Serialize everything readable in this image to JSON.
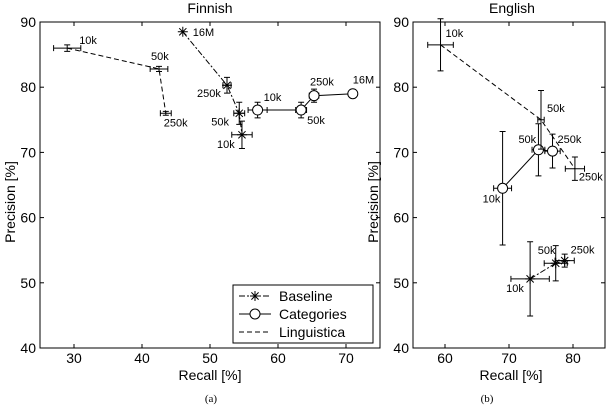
{
  "chart_data": [
    {
      "type": "scatter",
      "title": "Finnish",
      "xlabel": "Recall [%]",
      "ylabel": "Precision [%]",
      "caption": "(a)",
      "xlim": [
        25,
        75
      ],
      "ylim": [
        40,
        90
      ],
      "xticks": [
        30,
        40,
        50,
        60,
        70
      ],
      "yticks": [
        40,
        50,
        60,
        70,
        80,
        90
      ],
      "grid": false,
      "legend": {
        "placement": "bottom-right",
        "entries": [
          {
            "name": "Baseline",
            "marker": "star",
            "dash": "6,2,2,2"
          },
          {
            "name": "Categories",
            "marker": "circle",
            "dash": ""
          },
          {
            "name": "Linguistica",
            "marker": "none",
            "dash": "5,3"
          }
        ]
      },
      "series": [
        {
          "name": "Baseline",
          "marker": "star",
          "dash": "6,2,2,2",
          "points": [
            {
              "label": "16M",
              "x": 46,
              "y": 88.5,
              "xerr": 0,
              "yerr": 0,
              "label_dx": 10,
              "label_dy": 4
            },
            {
              "label": "250k",
              "x": 52.5,
              "y": 80.3,
              "xerr": 0.6,
              "yerr": 1.2,
              "label_dx": -30,
              "label_dy": 12
            },
            {
              "label": "50k",
              "x": 54.3,
              "y": 76.0,
              "xerr": 0.8,
              "yerr": 1.7,
              "label_dx": -28,
              "label_dy": 12
            },
            {
              "label": "10k",
              "x": 54.7,
              "y": 72.7,
              "xerr": 1.5,
              "yerr": 2.1,
              "label_dx": -25,
              "label_dy": 13
            }
          ]
        },
        {
          "name": "Categories",
          "marker": "circle",
          "dash": "",
          "points": [
            {
              "label": "10k",
              "x": 57.0,
              "y": 76.5,
              "xerr": 1.4,
              "yerr": 1.2,
              "label_dx": 6,
              "label_dy": -9
            },
            {
              "label": "50k",
              "x": 63.4,
              "y": 76.5,
              "xerr": 0.8,
              "yerr": 1.2,
              "label_dx": 6,
              "label_dy": 14
            },
            {
              "label": "250k",
              "x": 65.3,
              "y": 78.7,
              "xerr": 0.7,
              "yerr": 1.0,
              "label_dx": -4,
              "label_dy": -10
            },
            {
              "label": "16M",
              "x": 71.0,
              "y": 79.0,
              "xerr": 0,
              "yerr": 0,
              "label_dx": 0,
              "label_dy": -10
            }
          ]
        },
        {
          "name": "Linguistica",
          "marker": "none",
          "dash": "5,3",
          "points": [
            {
              "label": "10k",
              "x": 29.0,
              "y": 86.0,
              "xerr": 2.0,
              "yerr": 0.5,
              "label_dx": 12,
              "label_dy": -4
            },
            {
              "label": "50k",
              "x": 42.5,
              "y": 82.8,
              "xerr": 1.3,
              "yerr": 0.4,
              "label_dx": -8,
              "label_dy": -9
            },
            {
              "label": "250k",
              "x": 43.5,
              "y": 76.0,
              "xerr": 0.8,
              "yerr": 0.3,
              "label_dx": -2,
              "label_dy": 13
            }
          ]
        }
      ]
    },
    {
      "type": "scatter",
      "title": "English",
      "xlabel": "Recall [%]",
      "ylabel": "Precision [%]",
      "caption": "(b)",
      "xlim": [
        55,
        85
      ],
      "ylim": [
        40,
        90
      ],
      "xticks": [
        60,
        70,
        80
      ],
      "yticks": [
        40,
        50,
        60,
        70,
        80,
        90
      ],
      "grid": false,
      "series": [
        {
          "name": "Baseline",
          "marker": "star",
          "dash": "6,2,2,2",
          "points": [
            {
              "label": "10k",
              "x": 73.3,
              "y": 50.6,
              "xerr": 3.0,
              "yerr": 5.7,
              "label_dx": -24,
              "label_dy": 13
            },
            {
              "label": "50k",
              "x": 77.3,
              "y": 53.0,
              "xerr": 1.8,
              "yerr": 2.7,
              "label_dx": -18,
              "label_dy": -9
            },
            {
              "label": "250k",
              "x": 78.7,
              "y": 53.4,
              "xerr": 1.5,
              "yerr": 1.0,
              "label_dx": 6,
              "label_dy": -7
            }
          ]
        },
        {
          "name": "Categories",
          "marker": "circle",
          "dash": "",
          "points": [
            {
              "label": "10k",
              "x": 69.0,
              "y": 64.5,
              "xerr": 1.4,
              "yerr": 8.7,
              "label_dx": -20,
              "label_dy": 14
            },
            {
              "label": "50k",
              "x": 74.6,
              "y": 70.4,
              "xerr": 1.0,
              "yerr": 4.0,
              "label_dx": -20,
              "label_dy": -7
            },
            {
              "label": "250k",
              "x": 76.8,
              "y": 70.2,
              "xerr": 1.2,
              "yerr": 2.6,
              "label_dx": 5,
              "label_dy": -8
            }
          ]
        },
        {
          "name": "Linguistica",
          "marker": "none",
          "dash": "5,3",
          "points": [
            {
              "label": "10k",
              "x": 59.3,
              "y": 86.5,
              "xerr": 2.0,
              "yerr": 4.0,
              "label_dx": 5,
              "label_dy": -8
            },
            {
              "label": "50k",
              "x": 75.0,
              "y": 75.0,
              "xerr": 0.5,
              "yerr": 4.5,
              "label_dx": 6,
              "label_dy": -8
            },
            {
              "label": "250k",
              "x": 80.3,
              "y": 67.5,
              "xerr": 1.5,
              "yerr": 1.8,
              "label_dx": 4,
              "label_dy": 12
            }
          ]
        }
      ]
    }
  ]
}
